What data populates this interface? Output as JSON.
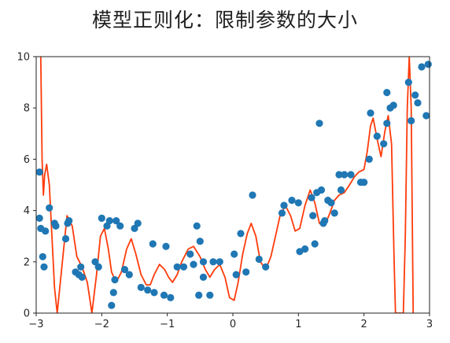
{
  "title": "模型正则化：限制参数的大小",
  "chart_data": {
    "type": "scatter",
    "title": "模型正则化：限制参数的大小",
    "xlabel": "",
    "ylabel": "",
    "xlim": [
      -3,
      3
    ],
    "ylim": [
      0,
      10
    ],
    "x_ticks": [
      "−3",
      "−2",
      "−1",
      "0",
      "1",
      "2",
      "3"
    ],
    "y_ticks": [
      "0",
      "2",
      "4",
      "6",
      "8",
      "10"
    ],
    "grid": false,
    "legend": "none",
    "colors": {
      "points": "#1f77b4",
      "curve": "#ff3b0a"
    },
    "series": [
      {
        "type": "scatter",
        "points": [
          [
            -2.95,
            5.5
          ],
          [
            -2.95,
            3.7
          ],
          [
            -2.93,
            3.3
          ],
          [
            -2.9,
            2.2
          ],
          [
            -2.88,
            1.8
          ],
          [
            -2.86,
            3.2
          ],
          [
            -2.8,
            4.1
          ],
          [
            -2.72,
            3.5
          ],
          [
            -2.7,
            3.4
          ],
          [
            -2.55,
            2.9
          ],
          [
            -2.52,
            3.5
          ],
          [
            -2.5,
            3.6
          ],
          [
            -2.4,
            1.6
          ],
          [
            -2.35,
            1.5
          ],
          [
            -2.32,
            1.8
          ],
          [
            -2.3,
            1.4
          ],
          [
            -2.1,
            2.0
          ],
          [
            -2.05,
            1.8
          ],
          [
            -2.0,
            3.7
          ],
          [
            -1.92,
            3.4
          ],
          [
            -1.88,
            3.6
          ],
          [
            -1.85,
            0.3
          ],
          [
            -1.82,
            0.8
          ],
          [
            -1.8,
            1.3
          ],
          [
            -1.78,
            3.6
          ],
          [
            -1.72,
            3.4
          ],
          [
            -1.65,
            1.7
          ],
          [
            -1.58,
            1.5
          ],
          [
            -1.5,
            3.3
          ],
          [
            -1.45,
            3.5
          ],
          [
            -1.4,
            1.0
          ],
          [
            -1.3,
            0.9
          ],
          [
            -1.22,
            2.7
          ],
          [
            -1.2,
            0.8
          ],
          [
            -1.05,
            0.7
          ],
          [
            -1.02,
            2.6
          ],
          [
            -0.95,
            0.6
          ],
          [
            -0.85,
            1.8
          ],
          [
            -0.75,
            1.8
          ],
          [
            -0.65,
            2.3
          ],
          [
            -0.6,
            1.9
          ],
          [
            -0.55,
            3.4
          ],
          [
            -0.52,
            0.7
          ],
          [
            -0.5,
            2.8
          ],
          [
            -0.45,
            1.4
          ],
          [
            -0.45,
            2.0
          ],
          [
            -0.35,
            0.7
          ],
          [
            -0.3,
            2.0
          ],
          [
            -0.2,
            2.0
          ],
          [
            0.02,
            2.3
          ],
          [
            0.05,
            1.5
          ],
          [
            0.12,
            3.1
          ],
          [
            0.2,
            1.6
          ],
          [
            0.3,
            4.6
          ],
          [
            0.4,
            2.1
          ],
          [
            0.5,
            1.8
          ],
          [
            0.75,
            3.9
          ],
          [
            0.78,
            4.2
          ],
          [
            0.9,
            4.4
          ],
          [
            1.0,
            4.3
          ],
          [
            1.02,
            2.4
          ],
          [
            1.1,
            2.5
          ],
          [
            1.2,
            4.5
          ],
          [
            1.22,
            3.8
          ],
          [
            1.25,
            2.7
          ],
          [
            1.28,
            4.7
          ],
          [
            1.32,
            7.4
          ],
          [
            1.35,
            4.8
          ],
          [
            1.38,
            3.5
          ],
          [
            1.4,
            3.6
          ],
          [
            1.45,
            4.4
          ],
          [
            1.5,
            4.3
          ],
          [
            1.55,
            3.9
          ],
          [
            1.62,
            5.4
          ],
          [
            1.65,
            4.8
          ],
          [
            1.7,
            5.4
          ],
          [
            1.8,
            5.4
          ],
          [
            1.95,
            5.1
          ],
          [
            2.0,
            5.1
          ],
          [
            2.08,
            6.0
          ],
          [
            2.1,
            7.8
          ],
          [
            2.2,
            6.9
          ],
          [
            2.3,
            6.6
          ],
          [
            2.35,
            7.4
          ],
          [
            2.35,
            8.6
          ],
          [
            2.4,
            8.0
          ],
          [
            2.45,
            8.1
          ],
          [
            2.68,
            9.0
          ],
          [
            2.72,
            7.5
          ],
          [
            2.78,
            8.5
          ],
          [
            2.82,
            8.2
          ],
          [
            2.88,
            9.6
          ],
          [
            2.95,
            7.7
          ],
          [
            2.98,
            9.7
          ]
        ]
      },
      {
        "type": "line",
        "points": [
          [
            -2.93,
            10.0
          ],
          [
            -2.91,
            6.0
          ],
          [
            -2.89,
            4.6
          ],
          [
            -2.87,
            5.4
          ],
          [
            -2.84,
            5.8
          ],
          [
            -2.8,
            5.0
          ],
          [
            -2.76,
            3.0
          ],
          [
            -2.72,
            1.0
          ],
          [
            -2.68,
            0.0
          ],
          [
            -2.6,
            2.0
          ],
          [
            -2.53,
            3.8
          ],
          [
            -2.45,
            3.4
          ],
          [
            -2.38,
            2.2
          ],
          [
            -2.3,
            1.8
          ],
          [
            -2.22,
            1.2
          ],
          [
            -2.15,
            0.0
          ],
          [
            -2.08,
            1.5
          ],
          [
            -2.02,
            3.0
          ],
          [
            -1.96,
            3.3
          ],
          [
            -1.9,
            2.5
          ],
          [
            -1.85,
            1.6
          ],
          [
            -1.78,
            1.2
          ],
          [
            -1.7,
            1.6
          ],
          [
            -1.62,
            2.5
          ],
          [
            -1.55,
            2.9
          ],
          [
            -1.48,
            2.3
          ],
          [
            -1.4,
            1.5
          ],
          [
            -1.32,
            1.1
          ],
          [
            -1.26,
            1.1
          ],
          [
            -1.2,
            1.5
          ],
          [
            -1.12,
            1.9
          ],
          [
            -1.04,
            1.7
          ],
          [
            -0.98,
            1.4
          ],
          [
            -0.92,
            1.2
          ],
          [
            -0.85,
            1.5
          ],
          [
            -0.78,
            2.0
          ],
          [
            -0.68,
            2.5
          ],
          [
            -0.6,
            2.6
          ],
          [
            -0.5,
            2.2
          ],
          [
            -0.42,
            1.7
          ],
          [
            -0.35,
            1.4
          ],
          [
            -0.28,
            1.7
          ],
          [
            -0.2,
            1.9
          ],
          [
            -0.12,
            1.4
          ],
          [
            -0.05,
            0.6
          ],
          [
            0.02,
            0.5
          ],
          [
            0.08,
            1.2
          ],
          [
            0.15,
            2.3
          ],
          [
            0.22,
            3.1
          ],
          [
            0.28,
            3.5
          ],
          [
            0.35,
            3.0
          ],
          [
            0.42,
            2.0
          ],
          [
            0.5,
            1.7
          ],
          [
            0.58,
            2.2
          ],
          [
            0.65,
            3.0
          ],
          [
            0.72,
            3.8
          ],
          [
            0.8,
            4.2
          ],
          [
            0.88,
            3.8
          ],
          [
            0.95,
            3.2
          ],
          [
            1.02,
            3.3
          ],
          [
            1.1,
            4.2
          ],
          [
            1.18,
            4.8
          ],
          [
            1.25,
            4.3
          ],
          [
            1.32,
            3.5
          ],
          [
            1.4,
            3.4
          ],
          [
            1.48,
            3.9
          ],
          [
            1.55,
            4.4
          ],
          [
            1.62,
            4.6
          ],
          [
            1.7,
            4.7
          ],
          [
            1.78,
            5.0
          ],
          [
            1.85,
            5.3
          ],
          [
            1.92,
            5.5
          ],
          [
            2.0,
            5.6
          ],
          [
            2.05,
            6.3
          ],
          [
            2.1,
            7.3
          ],
          [
            2.14,
            7.6
          ],
          [
            2.2,
            6.8
          ],
          [
            2.26,
            6.1
          ],
          [
            2.32,
            7.1
          ],
          [
            2.37,
            7.7
          ],
          [
            2.42,
            6.6
          ],
          [
            2.46,
            2.0
          ],
          [
            2.48,
            0.0
          ],
          [
            2.6,
            0.0
          ],
          [
            2.63,
            3.0
          ],
          [
            2.66,
            8.0
          ],
          [
            2.69,
            10.0
          ],
          [
            2.72,
            8.0
          ],
          [
            2.75,
            0.0
          ]
        ]
      }
    ]
  }
}
